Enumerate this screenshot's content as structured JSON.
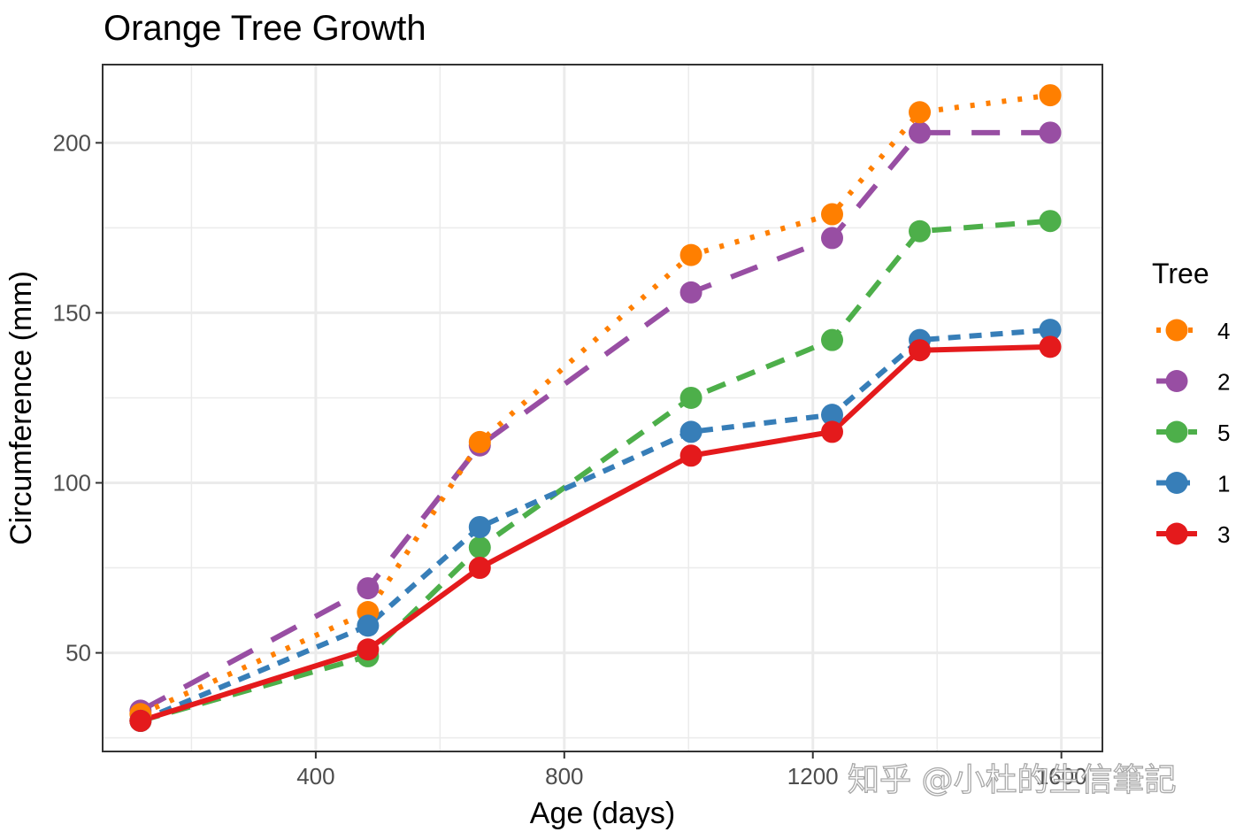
{
  "chart_data": {
    "type": "line",
    "title": "Orange Tree Growth",
    "xlabel": "Age (days)",
    "ylabel": "Circumference (mm)",
    "x": [
      118,
      484,
      664,
      1004,
      1231,
      1372,
      1582
    ],
    "xlim": [
      57,
      1666
    ],
    "ylim": [
      21,
      223
    ],
    "xticks": [
      400,
      800,
      1200,
      1600
    ],
    "xtick_labels": [
      "400",
      "800",
      "1200",
      "1600"
    ],
    "xminor": [
      200,
      600,
      1000,
      1400
    ],
    "yticks": [
      50,
      100,
      150,
      200
    ],
    "ytick_labels": [
      "50",
      "100",
      "150",
      "200"
    ],
    "yminor": [
      25,
      75,
      125,
      175
    ],
    "grid": true,
    "legend": {
      "title": "Tree",
      "position": "right"
    },
    "series": [
      {
        "name": "4",
        "color": "#FF7F00",
        "linetype": "dotted",
        "values": [
          32,
          62,
          112,
          167,
          179,
          209,
          214
        ]
      },
      {
        "name": "2",
        "color": "#984EA3",
        "linetype": "longdash",
        "values": [
          33,
          69,
          111,
          156,
          172,
          203,
          203
        ]
      },
      {
        "name": "5",
        "color": "#4DAF4A",
        "linetype": "dashed",
        "values": [
          30,
          49,
          81,
          125,
          142,
          174,
          177
        ]
      },
      {
        "name": "1",
        "color": "#377EB8",
        "linetype": "shortdash",
        "values": [
          30,
          58,
          87,
          115,
          120,
          142,
          145
        ]
      },
      {
        "name": "3",
        "color": "#E41A1C",
        "linetype": "solid",
        "values": [
          30,
          51,
          75,
          108,
          115,
          139,
          140
        ]
      }
    ],
    "draw_order": [
      "2",
      "4",
      "5",
      "1",
      "3"
    ]
  },
  "watermark": "知乎 @小杜的生信筆記"
}
